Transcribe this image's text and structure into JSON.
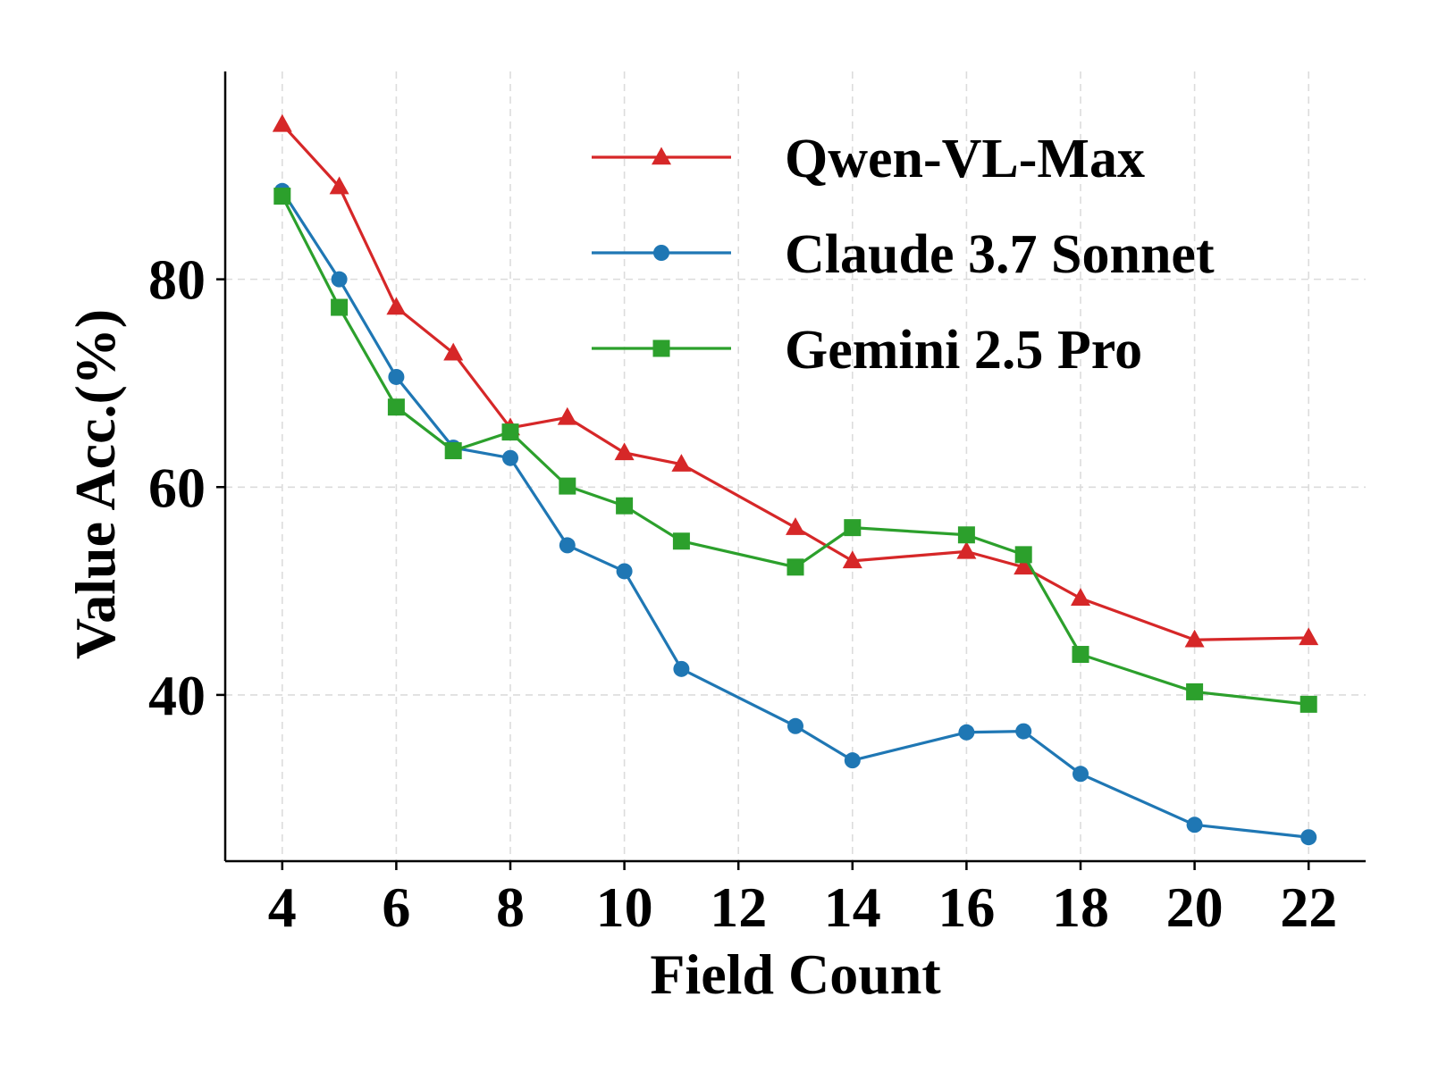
{
  "chart_data": {
    "type": "line",
    "xlabel": "Field Count",
    "ylabel": "Value Acc.(%)",
    "x": [
      4,
      5,
      6,
      7,
      8,
      9,
      10,
      11,
      13,
      14,
      16,
      17,
      18,
      20,
      22
    ],
    "xticks": [
      "4",
      "6",
      "8",
      "10",
      "12",
      "14",
      "16",
      "18",
      "20",
      "22"
    ],
    "yticks": [
      "40",
      "60",
      "80"
    ],
    "xlim": [
      3,
      23
    ],
    "ylim": [
      24,
      100
    ],
    "grid": true,
    "legend_position": "top-right",
    "series": [
      {
        "name": "Qwen-VL-Max",
        "color": "#d62728",
        "marker": "triangle",
        "values": [
          94.9,
          88.9,
          77.3,
          72.9,
          65.7,
          66.7,
          63.3,
          62.2,
          56.1,
          52.9,
          53.8,
          52.3,
          49.3,
          45.3,
          45.5
        ]
      },
      {
        "name": "Claude 3.7 Sonnet",
        "color": "#1f77b4",
        "marker": "circle",
        "values": [
          88.5,
          80.0,
          70.6,
          63.8,
          62.8,
          54.4,
          51.9,
          42.5,
          37.0,
          33.7,
          36.4,
          36.5,
          32.4,
          27.5,
          26.3
        ]
      },
      {
        "name": "Gemini 2.5 Pro",
        "color": "#2ca02c",
        "marker": "square",
        "values": [
          88.0,
          77.3,
          67.7,
          63.5,
          65.3,
          60.1,
          58.2,
          54.8,
          52.3,
          56.1,
          55.4,
          53.5,
          43.9,
          40.3,
          39.1
        ]
      }
    ]
  }
}
